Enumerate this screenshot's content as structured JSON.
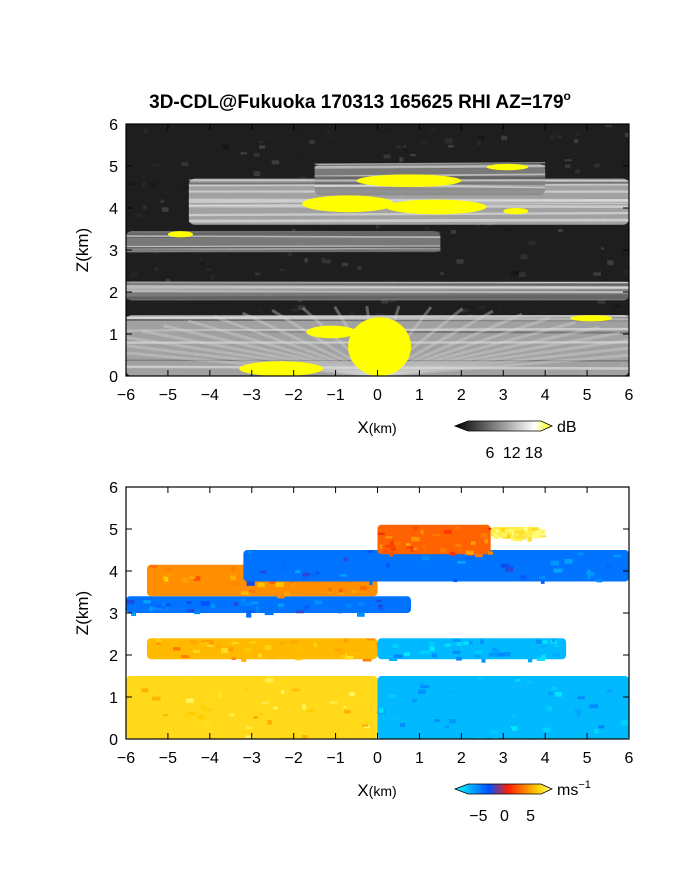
{
  "title": "3D-CDL@Fukuoka 170313 165625 RHI AZ=179",
  "title_superscript": "o",
  "chart_data": [
    {
      "type": "heatmap",
      "variable": "SNR",
      "xlabel": "X",
      "xlabel_unit": "(km)",
      "ylabel": "Z(km)",
      "xlim": [
        -6,
        6
      ],
      "ylim": [
        0,
        6
      ],
      "xticks": [
        -6,
        -5,
        -4,
        -3,
        -2,
        -1,
        0,
        1,
        2,
        3,
        4,
        5,
        6
      ],
      "yticks": [
        0,
        1,
        2,
        3,
        4,
        5,
        6
      ],
      "colorbar": {
        "unit": "dB",
        "ticks": [
          6,
          12,
          18
        ],
        "range": [
          0,
          20
        ],
        "colors": [
          "#000000",
          "#ffffff",
          "#ffff00"
        ]
      },
      "layers": [
        {
          "z_bottom": 0.0,
          "z_top": 1.45,
          "x_from": -6,
          "x_to": 6,
          "level": "strong"
        },
        {
          "z_bottom": 1.8,
          "z_top": 2.25,
          "x_from": -6,
          "x_to": 6,
          "level": "medium"
        },
        {
          "z_bottom": 2.95,
          "z_top": 3.45,
          "x_from": -6,
          "x_to": 1.5,
          "level": "medium"
        },
        {
          "z_bottom": 3.6,
          "z_top": 4.7,
          "x_from": -4.5,
          "x_to": 6,
          "level": "strong"
        },
        {
          "z_bottom": 4.3,
          "z_top": 5.05,
          "x_from": -1.5,
          "x_to": 4,
          "level": "medium"
        }
      ]
    },
    {
      "type": "heatmap",
      "variable": "Doppler velocity",
      "xlabel": "X",
      "xlabel_unit": "(km)",
      "ylabel": "Z(km)",
      "xlim": [
        -6,
        6
      ],
      "ylim": [
        0,
        6
      ],
      "xticks": [
        -6,
        -5,
        -4,
        -3,
        -2,
        -1,
        0,
        1,
        2,
        3,
        4,
        5,
        6
      ],
      "yticks": [
        0,
        1,
        2,
        3,
        4,
        5,
        6
      ],
      "colorbar": {
        "unit": "ms",
        "unit_exponent": "−1",
        "tick_labels": [
          "−5",
          "0",
          "5"
        ],
        "range": [
          -7,
          7
        ],
        "colors": [
          "#00ffff",
          "#0050ff",
          "#ff2000",
          "#ffd000",
          "#ffff80"
        ]
      },
      "regions": [
        {
          "x_from": -6,
          "x_to": 0,
          "z_bottom": 0.0,
          "z_top": 1.5,
          "velocity": 5
        },
        {
          "x_from": 0,
          "x_to": 6,
          "z_bottom": 0.0,
          "z_top": 1.5,
          "velocity": -5
        },
        {
          "x_from": -5.5,
          "x_to": 0,
          "z_bottom": 1.9,
          "z_top": 2.4,
          "velocity": 4
        },
        {
          "x_from": 0,
          "x_to": 4.5,
          "z_bottom": 1.9,
          "z_top": 2.4,
          "velocity": -5
        },
        {
          "x_from": -6,
          "x_to": 0.8,
          "z_bottom": 3.0,
          "z_top": 3.4,
          "velocity": -3
        },
        {
          "x_from": -5.5,
          "x_to": 0,
          "z_bottom": 3.4,
          "z_top": 4.15,
          "velocity": 3
        },
        {
          "x_from": -3.2,
          "x_to": 6,
          "z_bottom": 3.75,
          "z_top": 4.5,
          "velocity": -3
        },
        {
          "x_from": 0,
          "x_to": 2.7,
          "z_bottom": 4.4,
          "z_top": 5.1,
          "velocity": 2
        },
        {
          "x_from": 2.7,
          "x_to": 3.9,
          "z_bottom": 4.8,
          "z_top": 5.05,
          "velocity": 6
        }
      ]
    }
  ]
}
